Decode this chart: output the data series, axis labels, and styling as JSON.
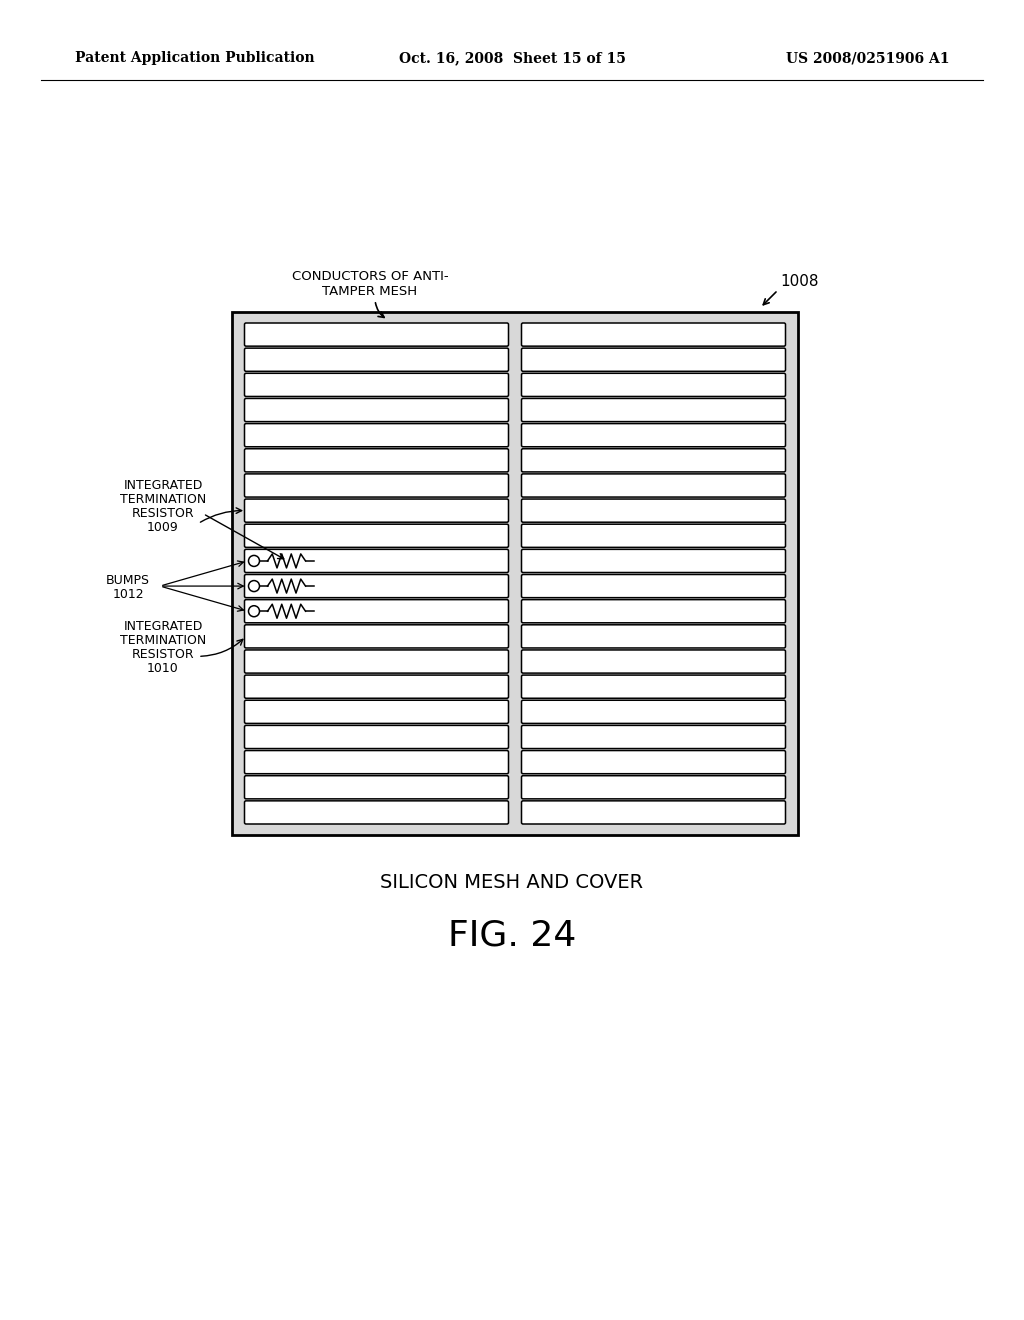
{
  "bg_color": "#ffffff",
  "header_left": "Patent Application Publication",
  "header_mid": "Oct. 16, 2008  Sheet 15 of 15",
  "header_right": "US 2008/0251906 A1",
  "label_1008": "1008",
  "label_conductors_line1": "CONDUCTORS OF ANTI-",
  "label_conductors_line2": "TAMPER MESH",
  "label_int_res_top_lines": [
    "INTEGRATED",
    "TERMINATION",
    "RESISTOR",
    "1009"
  ],
  "label_bumps_lines": [
    "BUMPS",
    "1012"
  ],
  "label_int_res_bot_lines": [
    "INTEGRATED",
    "TERMINATION",
    "RESISTOR",
    "1010"
  ],
  "caption_top": "SILICON MESH AND COVER",
  "caption_bot": "FIG. 24",
  "num_rows": 20,
  "num_cols": 2
}
